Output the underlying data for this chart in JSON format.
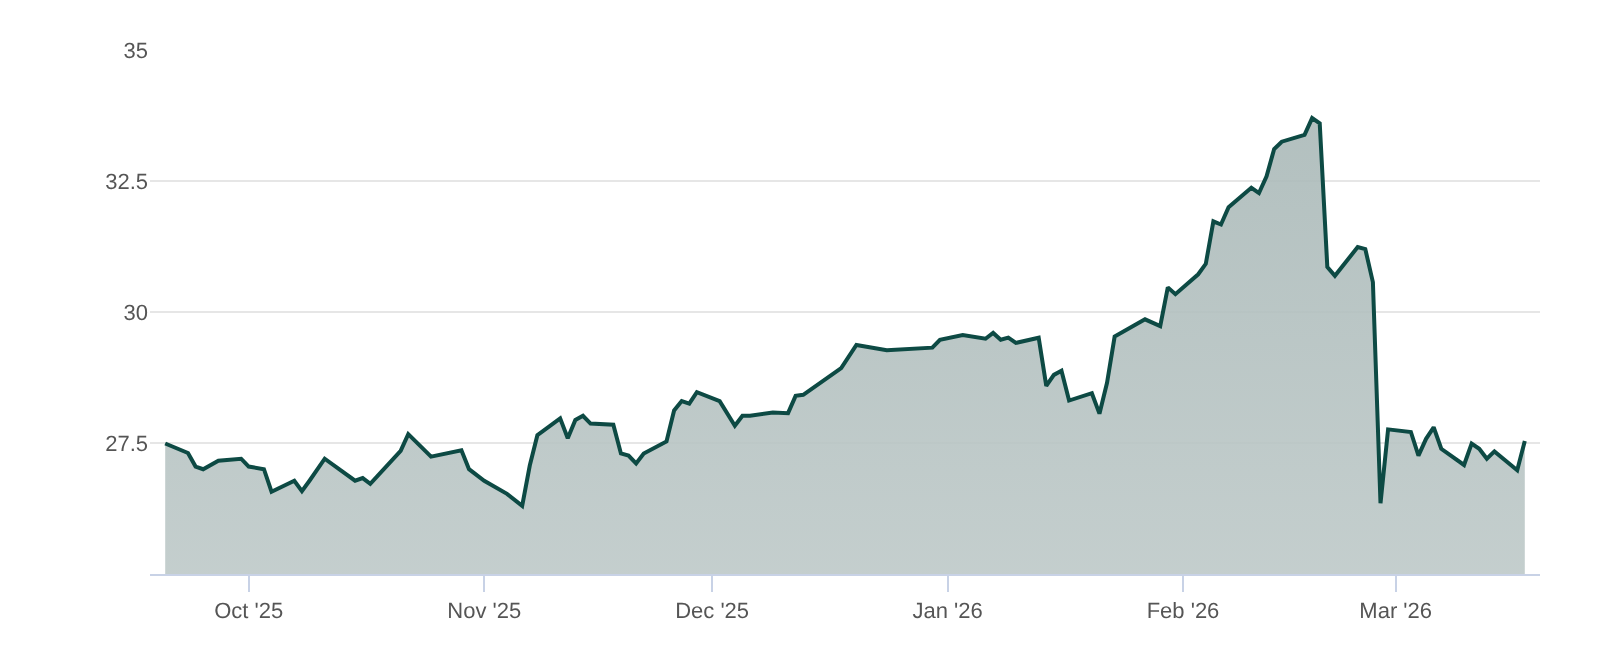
{
  "chart_data": {
    "type": "area",
    "x": [
      "2025-09-20",
      "2025-09-23",
      "2025-09-24",
      "2025-09-25",
      "2025-09-27",
      "2025-09-30",
      "2025-10-01",
      "2025-10-03",
      "2025-10-04",
      "2025-10-07",
      "2025-10-08",
      "2025-10-09",
      "2025-10-11",
      "2025-10-15",
      "2025-10-16",
      "2025-10-17",
      "2025-10-21",
      "2025-10-22",
      "2025-10-25",
      "2025-10-29",
      "2025-10-30",
      "2025-11-01",
      "2025-11-04",
      "2025-11-06",
      "2025-11-07",
      "2025-11-08",
      "2025-11-11",
      "2025-11-12",
      "2025-11-13",
      "2025-11-14",
      "2025-11-15",
      "2025-11-18",
      "2025-11-19",
      "2025-11-20",
      "2025-11-21",
      "2025-11-22",
      "2025-11-25",
      "2025-11-26",
      "2025-11-27",
      "2025-11-28",
      "2025-11-29",
      "2025-12-02",
      "2025-12-04",
      "2025-12-05",
      "2025-12-06",
      "2025-12-09",
      "2025-12-11",
      "2025-12-12",
      "2025-12-13",
      "2025-12-18",
      "2025-12-20",
      "2025-12-24",
      "2025-12-30",
      "2025-12-31",
      "2026-01-03",
      "2026-01-06",
      "2026-01-07",
      "2026-01-08",
      "2026-01-09",
      "2026-01-10",
      "2026-01-13",
      "2026-01-14",
      "2026-01-15",
      "2026-01-16",
      "2026-01-17",
      "2026-01-20",
      "2026-01-21",
      "2026-01-22",
      "2026-01-23",
      "2026-01-27",
      "2026-01-29",
      "2026-01-30",
      "2026-01-31",
      "2026-02-03",
      "2026-02-04",
      "2026-02-05",
      "2026-02-06",
      "2026-02-07",
      "2026-02-10",
      "2026-02-11",
      "2026-02-12",
      "2026-02-13",
      "2026-02-14",
      "2026-02-17",
      "2026-02-18",
      "2026-02-19",
      "2026-02-20",
      "2026-02-21",
      "2026-02-24",
      "2026-02-25",
      "2026-02-26",
      "2026-02-27",
      "2026-02-28",
      "2026-03-03",
      "2026-03-04",
      "2026-03-05",
      "2026-03-06",
      "2026-03-07",
      "2026-03-10",
      "2026-03-11",
      "2026-03-12",
      "2026-03-13",
      "2026-03-14",
      "2026-03-17",
      "2026-03-18"
    ],
    "series": [
      {
        "color": "#0d4a44",
        "values": [
          27.49,
          27.31,
          27.05,
          27.0,
          27.16,
          27.2,
          27.05,
          27.0,
          26.57,
          26.78,
          26.58,
          26.78,
          27.2,
          26.78,
          26.83,
          26.72,
          27.35,
          27.67,
          27.24,
          27.36,
          27.0,
          26.78,
          26.53,
          26.3,
          27.07,
          27.65,
          27.97,
          27.59,
          27.94,
          28.02,
          27.87,
          27.85,
          27.3,
          27.26,
          27.11,
          27.3,
          27.53,
          28.12,
          28.3,
          28.25,
          28.47,
          28.3,
          27.83,
          28.02,
          28.02,
          28.08,
          28.07,
          28.4,
          28.42,
          28.93,
          29.37,
          29.27,
          29.32,
          29.47,
          29.56,
          29.49,
          29.6,
          29.47,
          29.51,
          29.41,
          29.51,
          28.59,
          28.8,
          28.88,
          28.31,
          28.45,
          28.06,
          28.65,
          29.53,
          29.86,
          29.73,
          30.47,
          30.34,
          30.72,
          30.92,
          31.73,
          31.67,
          32.0,
          32.37,
          32.27,
          32.59,
          33.11,
          33.25,
          33.38,
          33.7,
          33.6,
          30.86,
          30.69,
          31.24,
          31.2,
          30.57,
          26.35,
          27.76,
          27.71,
          27.26,
          27.58,
          27.8,
          27.39,
          27.08,
          27.49,
          27.39,
          27.2,
          27.34,
          26.98,
          27.54
        ]
      }
    ],
    "xlim": [
      "2025-09-18",
      "2026-03-20"
    ],
    "xticks": [
      {
        "value": "2025-10-01",
        "label": "Oct '25"
      },
      {
        "value": "2025-11-01",
        "label": "Nov '25"
      },
      {
        "value": "2025-12-01",
        "label": "Dec '25"
      },
      {
        "value": "2026-01-01",
        "label": "Jan '26"
      },
      {
        "value": "2026-02-01",
        "label": "Feb '26"
      },
      {
        "value": "2026-03-01",
        "label": "Mar '26"
      }
    ],
    "ylim": [
      25,
      35
    ],
    "yticks": [
      {
        "value": 25,
        "label": null
      },
      27.5,
      30,
      32.5,
      35
    ],
    "grid": "y",
    "legend": false
  }
}
